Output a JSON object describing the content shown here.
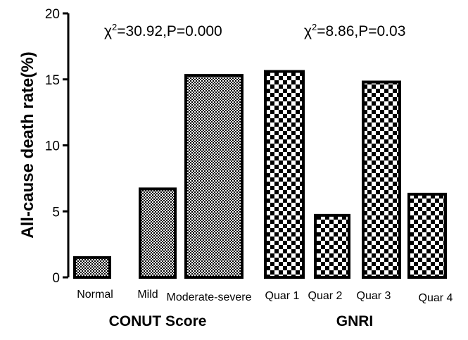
{
  "chart_data": {
    "type": "bar",
    "ylabel": "All-cause death rate(%)",
    "ylim": [
      0,
      20
    ],
    "yticks": [
      0,
      5,
      10,
      15,
      20
    ],
    "grid": false,
    "groups": [
      {
        "name": "CONUT Score",
        "stat": {
          "prefix": "χ",
          "sup": "2",
          "text": "=30.92,P=0.000"
        },
        "pattern": "fine-checker",
        "categories": [
          "Normal",
          "Mild",
          "Moderate-severe"
        ],
        "values": [
          1.5,
          6.7,
          15.3
        ]
      },
      {
        "name": "GNRI",
        "stat": {
          "prefix": "χ",
          "sup": "2",
          "text": "=8.86,P=0.03"
        },
        "pattern": "coarse-checker",
        "categories": [
          "Quar 1",
          "Quar 2",
          "Quar 3",
          "Quar 4"
        ],
        "values": [
          15.6,
          4.7,
          14.8,
          6.3
        ]
      }
    ]
  }
}
